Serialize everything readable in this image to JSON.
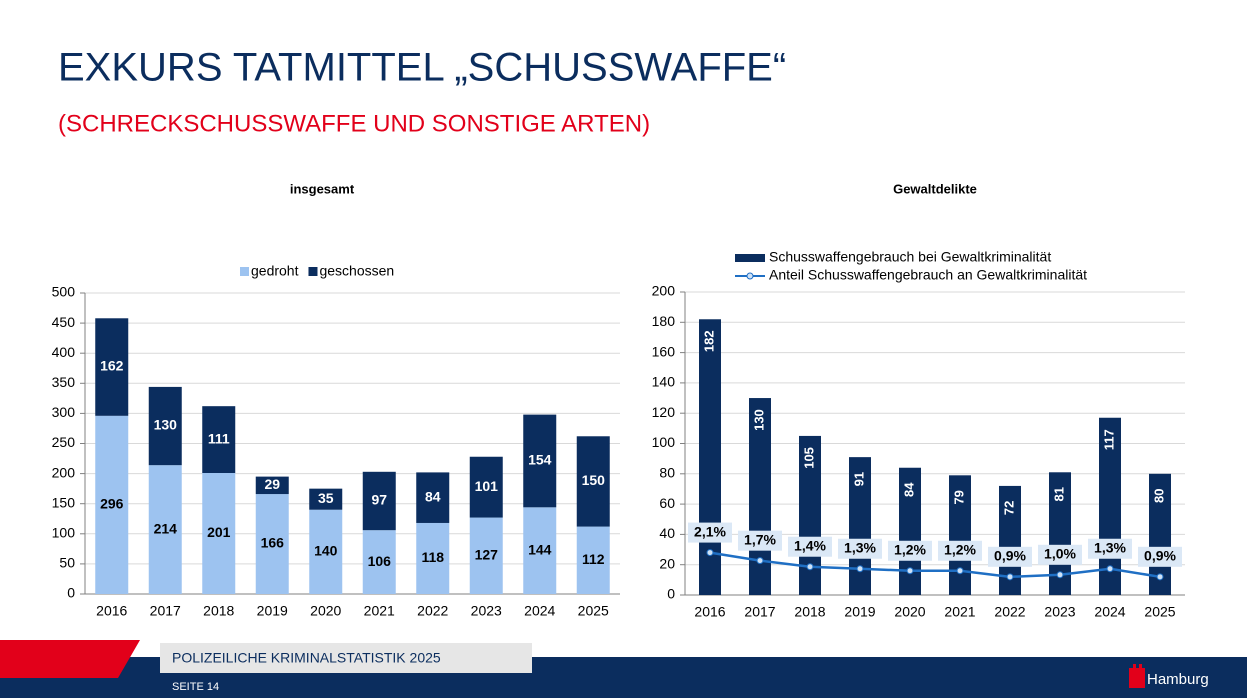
{
  "header": {
    "title": "EXKURS TATMITTEL „SCHUSSWAFFE“",
    "subtitle": "(SCHRECKSCHUSSWAFFE UND SONSTIGE ARTEN)"
  },
  "chart_data": [
    {
      "type": "bar",
      "stacked": true,
      "title": "insgesamt",
      "categories": [
        "2016",
        "2017",
        "2018",
        "2019",
        "2020",
        "2021",
        "2022",
        "2023",
        "2024",
        "2025"
      ],
      "series": [
        {
          "name": "gedroht",
          "color": "#9dc3f0",
          "values": [
            296,
            214,
            201,
            166,
            140,
            106,
            118,
            127,
            144,
            112
          ]
        },
        {
          "name": "geschossen",
          "color": "#0b2d5e",
          "values": [
            162,
            130,
            111,
            29,
            35,
            97,
            84,
            101,
            154,
            150
          ]
        }
      ],
      "ylim": [
        0,
        500
      ],
      "yticks": [
        0,
        50,
        100,
        150,
        200,
        250,
        300,
        350,
        400,
        450,
        500
      ],
      "grid": true,
      "legend": "top"
    },
    {
      "type": "bar",
      "title": "Gewaltdelikte",
      "categories": [
        "2016",
        "2017",
        "2018",
        "2019",
        "2020",
        "2021",
        "2022",
        "2023",
        "2024",
        "2025"
      ],
      "series": [
        {
          "name": "Schusswaffengebrauch bei Gewaltkriminalität",
          "color": "#0b2d5e",
          "values": [
            182,
            130,
            105,
            91,
            84,
            79,
            72,
            81,
            117,
            80
          ]
        },
        {
          "name": "Anteil Schusswaffengebrauch an Gewaltkriminalität",
          "type": "line",
          "axis": "y2",
          "color": "#1f6fc4",
          "values": [
            2.1,
            1.7,
            1.4,
            1.3,
            1.2,
            1.2,
            0.9,
            1.0,
            1.3,
            0.9
          ],
          "value_labels": [
            "2,1%",
            "1,7%",
            "1,4%",
            "1,3%",
            "1,2%",
            "1,2%",
            "0,9%",
            "1,0%",
            "1,3%",
            "0,9%"
          ]
        }
      ],
      "ylim": [
        0,
        200
      ],
      "yticks": [
        0,
        20,
        40,
        60,
        80,
        100,
        120,
        140,
        160,
        180,
        200
      ],
      "y2lim": [
        0,
        15
      ],
      "grid": true,
      "legend": "top left"
    }
  ],
  "footer": {
    "publication": "POLIZEILICHE KRIMINALSTATISTIK 2025",
    "page": "SEITE 14",
    "logo": "Hamburg"
  }
}
